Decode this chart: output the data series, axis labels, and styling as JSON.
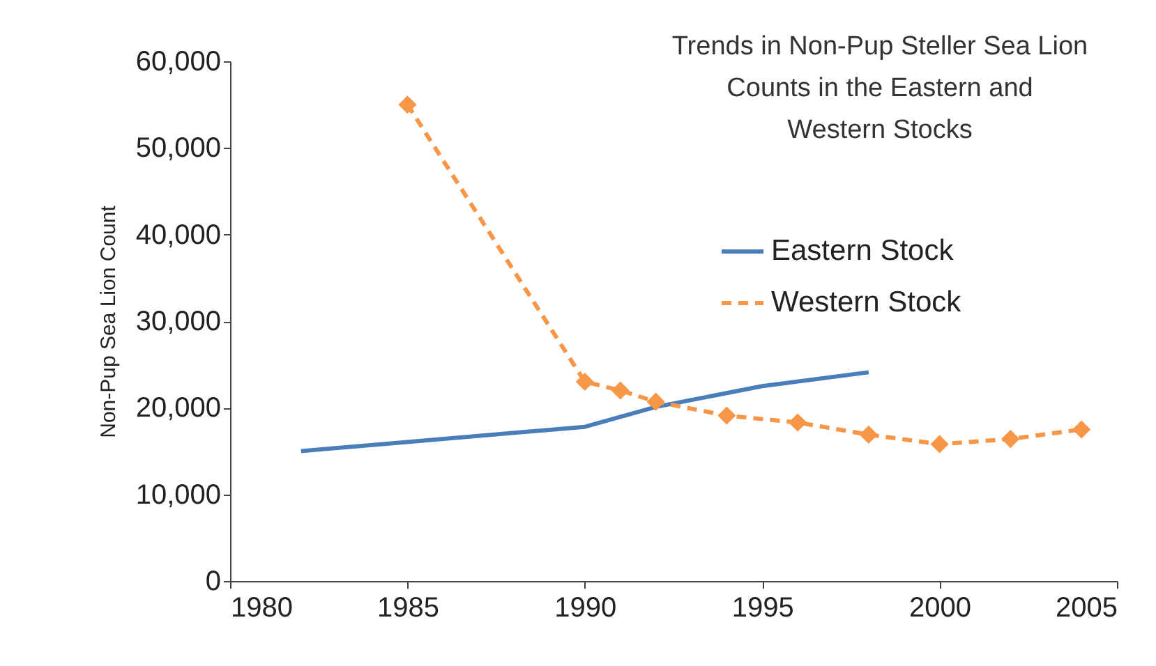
{
  "chart_data": {
    "type": "line",
    "title": "Trends in Non-Pup Steller Sea Lion Counts in the Eastern and Western Stocks",
    "ylabel": "Non-Pup Sea Lion Count",
    "series": [
      {
        "name": "Eastern Stock",
        "color": "#4a7ebb",
        "line_style": "solid",
        "marker": "none",
        "x": [
          1982,
          1990,
          1992,
          1995,
          1998
        ],
        "values": [
          15000,
          17800,
          20100,
          22500,
          24100
        ]
      },
      {
        "name": "Western Stock",
        "color": "#f79646",
        "line_style": "dashed",
        "marker": "diamond",
        "x": [
          1985,
          1990,
          1991,
          1992,
          1994,
          1996,
          1998,
          2000,
          2002,
          2004
        ],
        "values": [
          55000,
          23000,
          22000,
          20700,
          19100,
          18300,
          16900,
          15800,
          16400,
          17500
        ]
      }
    ],
    "xlim": [
      1980,
      2005
    ],
    "xticks": [
      1980,
      1985,
      1990,
      1995,
      2000,
      2005
    ],
    "ylim": [
      0,
      60000
    ],
    "yticks": [
      0,
      {
        "value": 10000,
        "label": "10,000"
      },
      {
        "value": 20000,
        "label": "20,000"
      },
      {
        "value": 30000,
        "label": "30,000"
      },
      {
        "value": 40000,
        "label": "40,000"
      },
      {
        "value": 50000,
        "label": "50,000"
      },
      {
        "value": 60000,
        "label": "60,000"
      }
    ],
    "grid": false,
    "legend": "top right"
  }
}
